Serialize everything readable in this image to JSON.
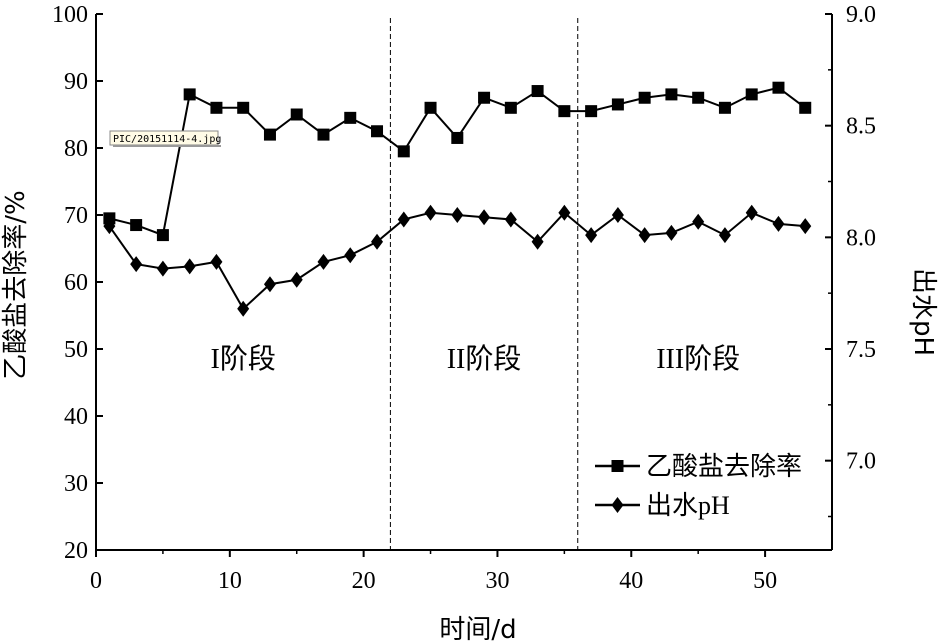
{
  "chart_data": {
    "type": "line",
    "xlabel": "时间/d",
    "ylabel_left": "乙酸盐去除率/%",
    "ylabel_right": "出水pH",
    "xlim": [
      0,
      55
    ],
    "ylim_left": [
      20,
      100
    ],
    "ylim_right": [
      6.6,
      9.0
    ],
    "x_ticks": [
      "0",
      "10",
      "20",
      "30",
      "40",
      "50"
    ],
    "y_left_ticks": [
      "20",
      "30",
      "40",
      "50",
      "60",
      "70",
      "80",
      "90",
      "100"
    ],
    "y_right_ticks": [
      "7.0",
      "7.5",
      "8.0",
      "8.5",
      "9.0"
    ],
    "stage_dividers": [
      22,
      36
    ],
    "stages": [
      {
        "label": "I阶段",
        "x": 11
      },
      {
        "label": "II阶段",
        "x": 29
      },
      {
        "label": "III阶段",
        "x": 45
      }
    ],
    "series": [
      {
        "name": "乙酸盐去除率",
        "axis": "left",
        "marker": "square",
        "x": [
          1,
          3,
          5,
          7,
          9,
          11,
          13,
          15,
          17,
          19,
          21,
          23,
          25,
          27,
          29,
          31,
          33,
          35,
          37,
          39,
          41,
          43,
          45,
          47,
          49,
          51,
          53
        ],
        "values": [
          69.5,
          68.5,
          67,
          88,
          86,
          86,
          82,
          85,
          82,
          84.5,
          82.5,
          79.5,
          86,
          81.5,
          87.5,
          86,
          88.5,
          85.5,
          85.5,
          86.5,
          87.5,
          88,
          87.5,
          86,
          88,
          89,
          86
        ]
      },
      {
        "name": "出水pH",
        "axis": "right",
        "marker": "diamond",
        "x": [
          1,
          3,
          5,
          7,
          9,
          11,
          13,
          15,
          17,
          19,
          21,
          23,
          25,
          27,
          29,
          31,
          33,
          35,
          37,
          39,
          41,
          43,
          45,
          47,
          49,
          51,
          53
        ],
        "values": [
          8.05,
          7.88,
          7.86,
          7.87,
          7.89,
          7.68,
          7.79,
          7.81,
          7.89,
          7.92,
          7.98,
          8.08,
          8.11,
          8.1,
          8.09,
          8.08,
          7.98,
          8.11,
          8.01,
          8.1,
          8.01,
          8.02,
          8.07,
          8.01,
          8.11,
          8.06,
          8.05
        ]
      }
    ],
    "legend": {
      "placement": "lower-right"
    }
  },
  "image_label": "PIC/20151114-4.jpg"
}
